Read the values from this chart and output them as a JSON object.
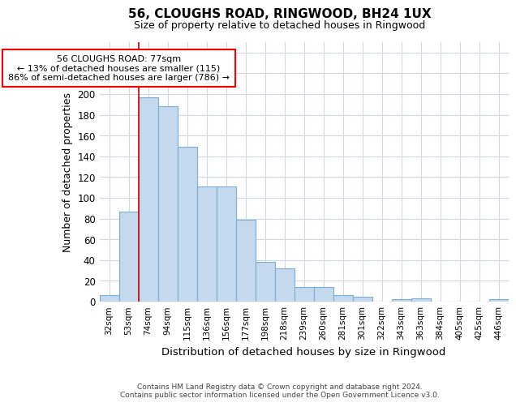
{
  "title": "56, CLOUGHS ROAD, RINGWOOD, BH24 1UX",
  "subtitle": "Size of property relative to detached houses in Ringwood",
  "xlabel": "Distribution of detached houses by size in Ringwood",
  "ylabel": "Number of detached properties",
  "footer_line1": "Contains HM Land Registry data © Crown copyright and database right 2024.",
  "footer_line2": "Contains public sector information licensed under the Open Government Licence v3.0.",
  "categories": [
    "32sqm",
    "53sqm",
    "74sqm",
    "94sqm",
    "115sqm",
    "136sqm",
    "156sqm",
    "177sqm",
    "198sqm",
    "218sqm",
    "239sqm",
    "260sqm",
    "281sqm",
    "301sqm",
    "322sqm",
    "343sqm",
    "363sqm",
    "384sqm",
    "405sqm",
    "425sqm",
    "446sqm"
  ],
  "values": [
    6,
    87,
    197,
    188,
    149,
    111,
    111,
    79,
    38,
    32,
    14,
    14,
    6,
    5,
    0,
    2,
    3,
    0,
    0,
    0,
    2
  ],
  "bar_color": "#c5d9ee",
  "bar_edge_color": "#7aadd4",
  "subject_line_color": "#cc0000",
  "annotation_label": "56 CLOUGHS ROAD: 77sqm",
  "annotation_line1": "← 13% of detached houses are smaller (115)",
  "annotation_line2": "86% of semi-detached houses are larger (786) →",
  "subject_bar_index": 2,
  "ylim": [
    0,
    250
  ],
  "yticks": [
    0,
    20,
    40,
    60,
    80,
    100,
    120,
    140,
    160,
    180,
    200,
    220,
    240
  ],
  "bg_color": "#ffffff",
  "axes_bg_color": "#ffffff",
  "grid_color": "#d0d8e8"
}
